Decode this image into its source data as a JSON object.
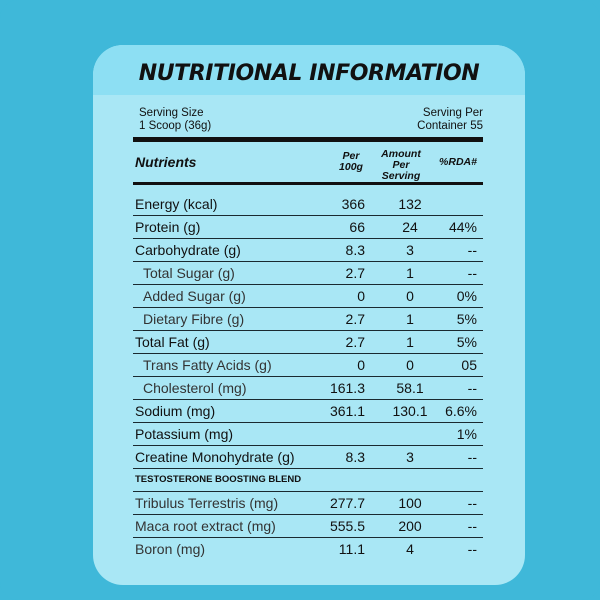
{
  "title": "NUTRITIONAL INFORMATION",
  "serving": {
    "size_label": "Serving Size",
    "size_value": "1 Scoop (36g)",
    "per_container_label": "Serving Per",
    "per_container_value": "Container 55"
  },
  "headers": {
    "nutrients": "Nutrients",
    "per100g_line1": "Per",
    "per100g_line2": "100g",
    "amount_line1": "Amount",
    "amount_line2": "Per",
    "amount_line3": "Serving",
    "rda": "%RDA#"
  },
  "rows": [
    {
      "name": "Energy (kcal)",
      "per100g": "366",
      "per_serving": "132",
      "rda": ""
    },
    {
      "name": "Protein (g)",
      "per100g": "66",
      "per_serving": "24",
      "rda": "44%"
    },
    {
      "name": "Carbohydrate (g)",
      "per100g": "8.3",
      "per_serving": "3",
      "rda": "--"
    },
    {
      "name": "Total Sugar (g)",
      "per100g": "2.7",
      "per_serving": "1",
      "rda": "--"
    },
    {
      "name": "Added Sugar (g)",
      "per100g": "0",
      "per_serving": "0",
      "rda": "0%"
    },
    {
      "name": "Dietary Fibre (g)",
      "per100g": "2.7",
      "per_serving": "1",
      "rda": "5%"
    },
    {
      "name": "Total Fat (g)",
      "per100g": "2.7",
      "per_serving": "1",
      "rda": "5%"
    },
    {
      "name": "Trans Fatty Acids (g)",
      "per100g": "0",
      "per_serving": "0",
      "rda": "05"
    },
    {
      "name": "Cholesterol (mg)",
      "per100g": "161.3",
      "per_serving": "58.1",
      "rda": "--"
    },
    {
      "name": "Sodium (mg)",
      "per100g": "361.1",
      "per_serving": "130.1",
      "rda": "6.6%"
    },
    {
      "name": "Potassium (mg)",
      "per100g": "",
      "per_serving": "",
      "rda": "1%"
    },
    {
      "name": "Creatine Monohydrate (g)",
      "per100g": "8.3",
      "per_serving": "3",
      "rda": "--"
    }
  ],
  "blend_title": "TESTOSTERONE BOOSTING BLEND",
  "blend_rows": [
    {
      "name": "Tribulus Terrestris (mg)",
      "per100g": "277.7",
      "per_serving": "100",
      "rda": "--"
    },
    {
      "name": "Maca root extract (mg)",
      "per100g": "555.5",
      "per_serving": "200",
      "rda": "--"
    },
    {
      "name": "Boron (mg)",
      "per100g": "11.1",
      "per_serving": "4",
      "rda": "--"
    }
  ]
}
